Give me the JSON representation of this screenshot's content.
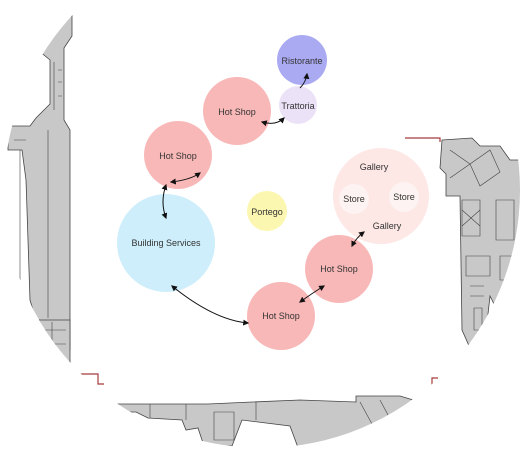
{
  "diagram": {
    "colors": {
      "hot_shop": "#f9b8b8",
      "building_services": "#cdeefa",
      "portego": "#fbf7b0",
      "gallery": "#fde8e6",
      "store": "#fdf3f2",
      "trattoria": "#ece2f7",
      "ristorante": "#aaaaf2",
      "map_fill": "#c8c8c8",
      "map_stroke": "#444444",
      "accent_red": "#a83b3b"
    },
    "nodes": {
      "ristorante": "Ristorante",
      "trattoria": "Trattoria",
      "hot_shop_top": "Hot Shop",
      "hot_shop_left": "Hot Shop",
      "building_services": "Building Services",
      "portego": "Portego",
      "gallery_top": "Gallery",
      "store_left": "Store",
      "store_right": "Store",
      "gallery_bottom": "Gallery",
      "hot_shop_right": "Hot Shop",
      "hot_shop_bottom": "Hot Shop"
    }
  }
}
